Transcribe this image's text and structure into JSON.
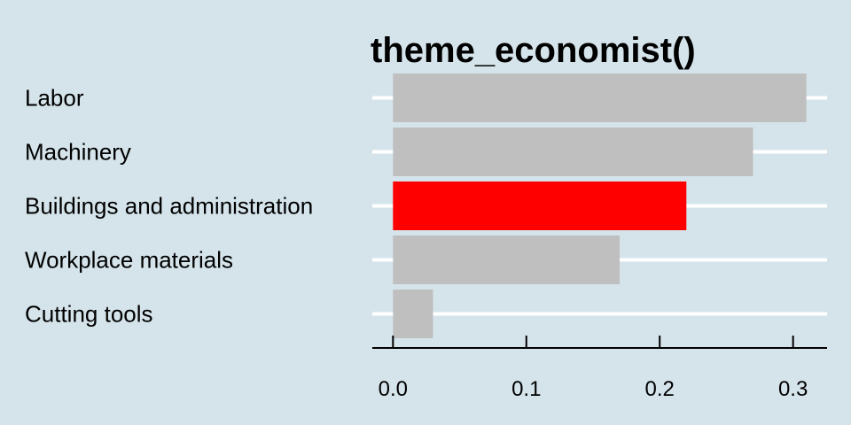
{
  "chart_data": {
    "type": "bar",
    "orientation": "horizontal",
    "title": "theme_economist()",
    "categories": [
      "Labor",
      "Machinery",
      "Buildings and administration",
      "Workplace materials",
      "Cutting tools"
    ],
    "values": [
      0.31,
      0.27,
      0.22,
      0.17,
      0.03
    ],
    "highlight": "Buildings and administration",
    "x_ticks": [
      "0.0",
      "0.1",
      "0.2",
      "0.3"
    ],
    "x_tick_values": [
      0.0,
      0.1,
      0.2,
      0.3
    ],
    "xlim": [
      -0.0155,
      0.3255
    ],
    "grid": "horizontal-major",
    "colors": {
      "background": "#d5e4eb",
      "bar": "#bfbfbf",
      "highlight": "#ff0000",
      "grid": "#ffffff",
      "axis": "#000000"
    }
  }
}
